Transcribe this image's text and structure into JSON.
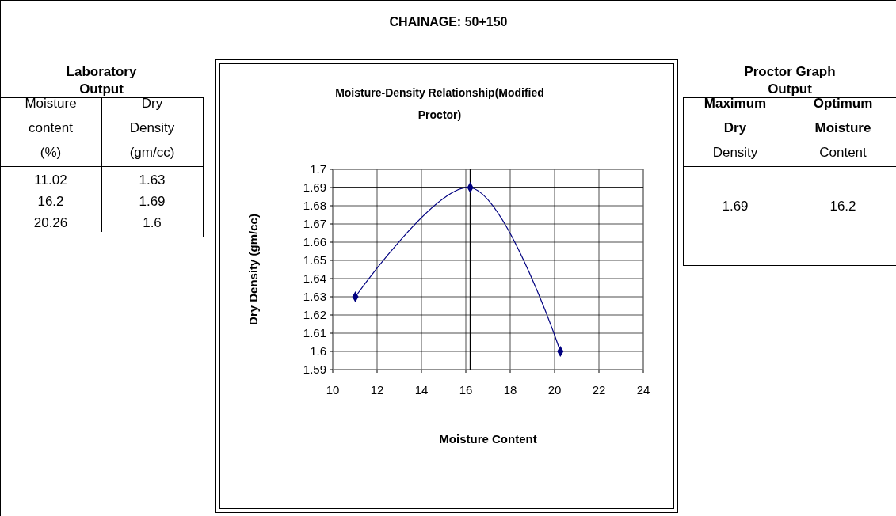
{
  "chart_data": {
    "type": "line",
    "title": "Moisture-Density Relationship(Modified Proctor)",
    "xlabel": "Moisture Content",
    "ylabel": "Dry Density (gm/cc)",
    "x": [
      11.02,
      16.2,
      20.26
    ],
    "series": [
      {
        "color": "#000080",
        "values": [
          1.63,
          1.69,
          1.6
        ]
      }
    ],
    "marker": "diamond",
    "xlim": [
      10,
      24
    ],
    "xticks": [
      10,
      12,
      14,
      16,
      18,
      20,
      22,
      24
    ],
    "ylim": [
      1.59,
      1.7
    ],
    "yticks": [
      1.59,
      1.6,
      1.61,
      1.62,
      1.63,
      1.64,
      1.65,
      1.66,
      1.67,
      1.68,
      1.69,
      1.7
    ],
    "grid": true,
    "ref_lines": [
      {
        "axis": "x",
        "value": 16.2,
        "color": "#000000"
      },
      {
        "axis": "y",
        "value": 1.69,
        "color": "#000000"
      }
    ],
    "annotations": [
      "CHAINAGE: 50+150",
      "Laboratory Output",
      "Moisture content (%)",
      "Dry Density (gm/cc)",
      "11.02",
      "1.63",
      "16.2",
      "1.69",
      "20.26",
      "1.6",
      "Proctor Graph Output",
      "Maximum Dry Density",
      "Optimum Moisture Content",
      "1.69",
      "16.2"
    ]
  }
}
